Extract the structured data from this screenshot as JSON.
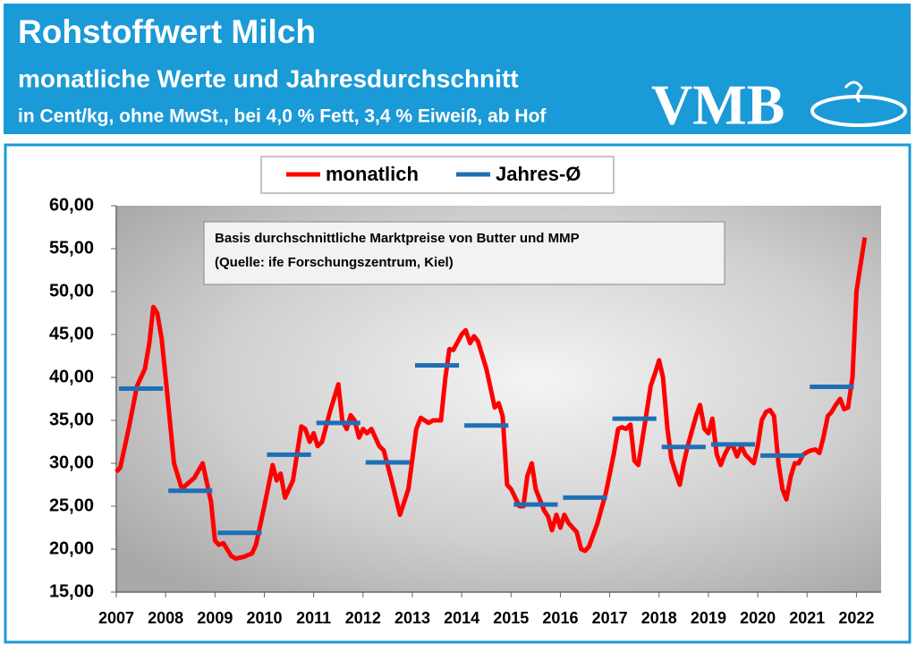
{
  "header": {
    "title": "Rohstoffwert Milch",
    "subtitle": "monatliche Werte und Jahresdurchschnitt",
    "unit_note": "in Cent/kg, ohne MwSt., bei 4,0 % Fett, 3,4 % Eiweiß, ab Hof",
    "logo": "VMB"
  },
  "chart_data": {
    "type": "line",
    "annotation": [
      "Basis durchschnittliche Marktpreise von Butter und MMP",
      "(Quelle: ife Forschungszentrum, Kiel)"
    ],
    "legend": "top",
    "xlim": [
      2007,
      2022.5
    ],
    "xticks": [
      2007,
      2008,
      2009,
      2010,
      2011,
      2012,
      2013,
      2014,
      2015,
      2016,
      2017,
      2018,
      2019,
      2020,
      2021,
      2022
    ],
    "ylim": [
      15,
      60
    ],
    "yticks": [
      {
        "value": 15,
        "label": "15,00"
      },
      {
        "value": 20,
        "label": "20,00"
      },
      {
        "value": 25,
        "label": "25,00"
      },
      {
        "value": 30,
        "label": "30,00"
      },
      {
        "value": 35,
        "label": "35,00"
      },
      {
        "value": 40,
        "label": "40,00"
      },
      {
        "value": 45,
        "label": "45,00"
      },
      {
        "value": 50,
        "label": "50,00"
      },
      {
        "value": 55,
        "label": "55,00"
      },
      {
        "value": 60,
        "label": "60,00"
      }
    ],
    "grid": false,
    "series": [
      {
        "name": "monatlich",
        "color": "#ff0000",
        "x": [
          2007.0,
          2007.08,
          2007.25,
          2007.42,
          2007.58,
          2007.67,
          2007.75,
          2007.83,
          2007.92,
          2008.0,
          2008.17,
          2008.33,
          2008.42,
          2008.58,
          2008.75,
          2008.92,
          2009.0,
          2009.08,
          2009.17,
          2009.33,
          2009.42,
          2009.58,
          2009.75,
          2009.83,
          2010.0,
          2010.17,
          2010.25,
          2010.33,
          2010.42,
          2010.58,
          2010.75,
          2010.83,
          2010.92,
          2011.0,
          2011.08,
          2011.17,
          2011.33,
          2011.5,
          2011.58,
          2011.67,
          2011.75,
          2011.83,
          2011.92,
          2012.0,
          2012.08,
          2012.17,
          2012.33,
          2012.42,
          2012.58,
          2012.75,
          2012.92,
          2013.08,
          2013.17,
          2013.33,
          2013.42,
          2013.58,
          2013.67,
          2013.75,
          2013.83,
          2014.0,
          2014.08,
          2014.17,
          2014.25,
          2014.33,
          2014.5,
          2014.67,
          2014.75,
          2014.83,
          2014.92,
          2015.0,
          2015.17,
          2015.25,
          2015.33,
          2015.42,
          2015.5,
          2015.67,
          2015.75,
          2015.83,
          2015.92,
          2016.0,
          2016.08,
          2016.17,
          2016.33,
          2016.42,
          2016.5,
          2016.58,
          2016.75,
          2016.92,
          2017.08,
          2017.17,
          2017.25,
          2017.33,
          2017.42,
          2017.5,
          2017.58,
          2017.75,
          2017.83,
          2017.92,
          2018.0,
          2018.08,
          2018.17,
          2018.25,
          2018.33,
          2018.42,
          2018.5,
          2018.58,
          2018.75,
          2018.83,
          2018.92,
          2019.0,
          2019.08,
          2019.17,
          2019.25,
          2019.33,
          2019.42,
          2019.5,
          2019.58,
          2019.67,
          2019.75,
          2019.92,
          2020.0,
          2020.08,
          2020.17,
          2020.25,
          2020.33,
          2020.42,
          2020.5,
          2020.58,
          2020.67,
          2020.75,
          2020.83,
          2020.92,
          2021.0,
          2021.08,
          2021.17,
          2021.25,
          2021.33,
          2021.42,
          2021.5,
          2021.58,
          2021.67,
          2021.75,
          2021.83,
          2021.92,
          2022.0,
          2022.08,
          2022.17
        ],
        "values": [
          29.0,
          29.5,
          34,
          39,
          41,
          44,
          48.2,
          47.5,
          44.5,
          40,
          30,
          27,
          27.5,
          28.3,
          30,
          25.5,
          21,
          20.5,
          20.7,
          19.2,
          18.9,
          19.1,
          19.5,
          20.5,
          25,
          29.8,
          28,
          28.8,
          26,
          28,
          34.3,
          34,
          32.5,
          33.5,
          32,
          32.5,
          36,
          39.2,
          35,
          34,
          35.6,
          35,
          33,
          34,
          33.5,
          34,
          32,
          31.5,
          28,
          24,
          27,
          34,
          35.3,
          34.7,
          35,
          35,
          40,
          43.3,
          43.2,
          45,
          45.5,
          44,
          44.8,
          44.2,
          41,
          36.5,
          37,
          35.5,
          27.5,
          27,
          25,
          25,
          28.5,
          30,
          27,
          24.5,
          23.8,
          22.2,
          24,
          22.5,
          24,
          23,
          22,
          20,
          19.8,
          20.3,
          23,
          26.5,
          31,
          34,
          34.2,
          34,
          34.5,
          30.3,
          29.8,
          36,
          39,
          40.5,
          42,
          40,
          34,
          30.5,
          29,
          27.5,
          30,
          32,
          35.5,
          36.8,
          34,
          33.5,
          35.2,
          31,
          29.8,
          31,
          32,
          32,
          30.8,
          32,
          31,
          30,
          32,
          35,
          36,
          36.2,
          35.5,
          30,
          27,
          25.8,
          28.5,
          30,
          30,
          31,
          31.3,
          31.5,
          31.6,
          31.2,
          33,
          35.5,
          36,
          36.8,
          37.5,
          36.3,
          36.5,
          40,
          50,
          53,
          56.3
        ]
      },
      {
        "name": "Jahres-Ø",
        "color": "#1f6fb5",
        "x": [
          2007,
          2008,
          2009,
          2010,
          2011,
          2012,
          2013,
          2014,
          2015,
          2016,
          2017,
          2018,
          2019,
          2020,
          2021
        ],
        "values": [
          38.7,
          26.8,
          21.9,
          31.0,
          34.7,
          30.1,
          41.4,
          34.4,
          25.2,
          26.0,
          35.2,
          31.9,
          32.2,
          30.9,
          38.9
        ]
      }
    ]
  }
}
